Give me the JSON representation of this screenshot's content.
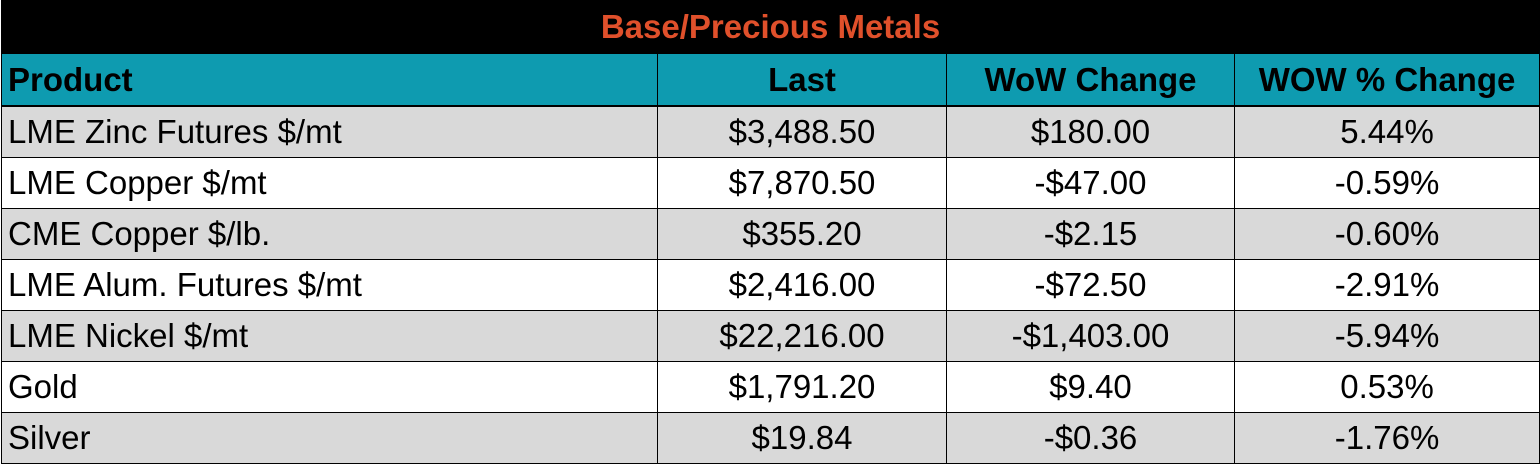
{
  "table": {
    "title": "Base/Precious Metals",
    "headers": [
      "Product",
      "Last",
      "WoW Change",
      "WOW % Change"
    ],
    "rows": [
      [
        "LME Zinc Futures $/mt",
        "$3,488.50",
        "$180.00",
        "5.44%"
      ],
      [
        "LME Copper $/mt",
        "$7,870.50",
        "-$47.00",
        "-0.59%"
      ],
      [
        "CME Copper $/lb.",
        "$355.20",
        "-$2.15",
        "-0.60%"
      ],
      [
        "LME Alum. Futures $/mt",
        "$2,416.00",
        "-$72.50",
        "-2.91%"
      ],
      [
        "LME Nickel $/mt",
        "$22,216.00",
        "-$1,403.00",
        "-5.94%"
      ],
      [
        "Gold",
        "$1,791.20",
        "$9.40",
        "0.53%"
      ],
      [
        "Silver",
        "$19.84",
        "-$0.36",
        "-1.76%"
      ]
    ]
  },
  "colors": {
    "title_background": "#000000",
    "title_text": "#e0502b",
    "header_background": "#0e9bb0",
    "row_shade": "#d9d9d9",
    "row_plain": "#ffffff"
  }
}
